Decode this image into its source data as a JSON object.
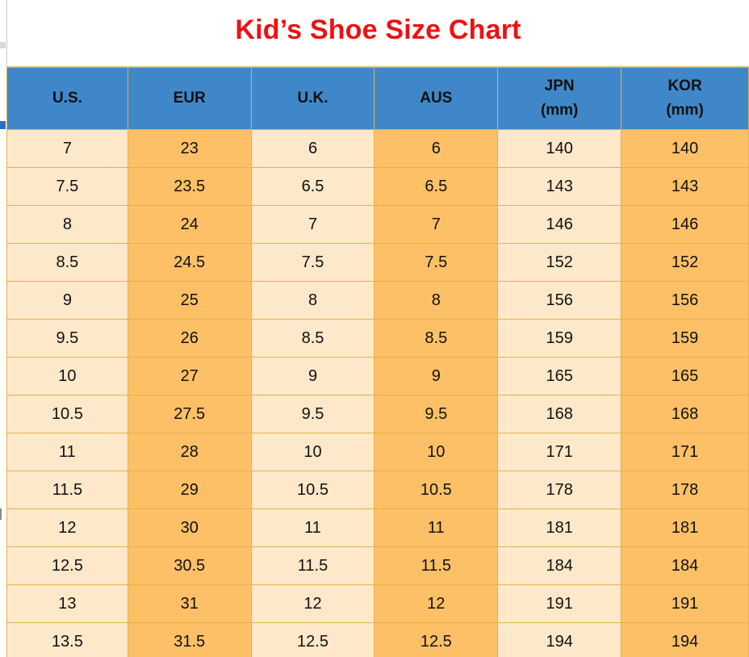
{
  "title": "Kid’s Shoe Size Chart",
  "colors": {
    "title": "#ee1111",
    "header_bg": "#3f87c8",
    "cell_light": "#fde8c9",
    "cell_dark": "#fdc067",
    "grid_line": "#e4b24a"
  },
  "table": {
    "headers": [
      "U.S.",
      "EUR",
      "U.K.",
      "AUS",
      "JPN\n(mm)",
      "KOR\n(mm)"
    ],
    "rows": [
      [
        "7",
        "23",
        "6",
        "6",
        "140",
        "140"
      ],
      [
        "7.5",
        "23.5",
        "6.5",
        "6.5",
        "143",
        "143"
      ],
      [
        "8",
        "24",
        "7",
        "7",
        "146",
        "146"
      ],
      [
        "8.5",
        "24.5",
        "7.5",
        "7.5",
        "152",
        "152"
      ],
      [
        "9",
        "25",
        "8",
        "8",
        "156",
        "156"
      ],
      [
        "9.5",
        "26",
        "8.5",
        "8.5",
        "159",
        "159"
      ],
      [
        "10",
        "27",
        "9",
        "9",
        "165",
        "165"
      ],
      [
        "10.5",
        "27.5",
        "9.5",
        "9.5",
        "168",
        "168"
      ],
      [
        "11",
        "28",
        "10",
        "10",
        "171",
        "171"
      ],
      [
        "11.5",
        "29",
        "10.5",
        "10.5",
        "178",
        "178"
      ],
      [
        "12",
        "30",
        "11",
        "11",
        "181",
        "181"
      ],
      [
        "12.5",
        "30.5",
        "11.5",
        "11.5",
        "184",
        "184"
      ],
      [
        "13",
        "31",
        "12",
        "12",
        "191",
        "191"
      ],
      [
        "13.5",
        "31.5",
        "12.5",
        "12.5",
        "194",
        "194"
      ]
    ]
  }
}
